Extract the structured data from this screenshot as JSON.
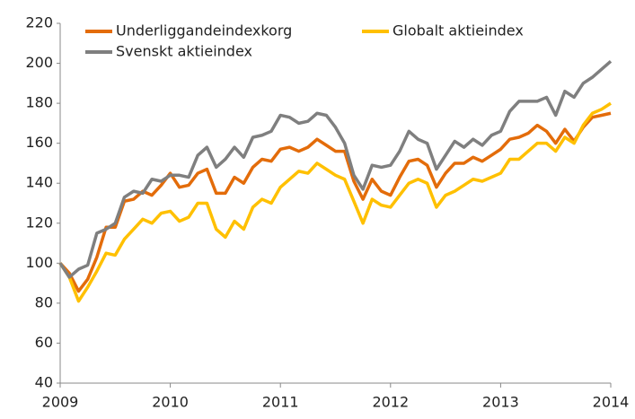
{
  "chart_data": {
    "type": "line",
    "x": [
      2009,
      2009.083,
      2009.167,
      2009.25,
      2009.333,
      2009.417,
      2009.5,
      2009.583,
      2009.667,
      2009.75,
      2009.833,
      2009.917,
      2010,
      2010.083,
      2010.167,
      2010.25,
      2010.333,
      2010.417,
      2010.5,
      2010.583,
      2010.667,
      2010.75,
      2010.833,
      2010.917,
      2011,
      2011.083,
      2011.167,
      2011.25,
      2011.333,
      2011.417,
      2011.5,
      2011.583,
      2011.667,
      2011.75,
      2011.833,
      2011.917,
      2012,
      2012.083,
      2012.167,
      2012.25,
      2012.333,
      2012.417,
      2012.5,
      2012.583,
      2012.667,
      2012.75,
      2012.833,
      2012.917,
      2013,
      2013.083,
      2013.167,
      2013.25,
      2013.333,
      2013.417,
      2013.5,
      2013.583,
      2013.667,
      2013.75,
      2013.833,
      2013.917,
      2014
    ],
    "series": [
      {
        "name": "Underliggandeindexkorg",
        "color": "#e36c0a",
        "values": [
          100,
          95,
          86,
          92,
          103,
          118,
          118,
          131,
          132,
          136,
          134,
          139,
          145,
          138,
          139,
          145,
          147,
          135,
          135,
          143,
          140,
          148,
          152,
          151,
          157,
          158,
          156,
          158,
          162,
          159,
          156,
          156,
          141,
          132,
          142,
          136,
          134,
          143,
          151,
          152,
          149,
          138,
          145,
          150,
          150,
          153,
          151,
          154,
          157,
          162,
          163,
          165,
          169,
          166,
          160,
          167,
          161,
          168,
          173,
          174,
          175
        ]
      },
      {
        "name": "Globalt aktieindex",
        "color": "#ffc000",
        "values": [
          100,
          93,
          81,
          88,
          96,
          105,
          104,
          112,
          117,
          122,
          120,
          125,
          126,
          121,
          123,
          130,
          130,
          117,
          113,
          121,
          117,
          128,
          132,
          130,
          138,
          142,
          146,
          145,
          150,
          147,
          144,
          142,
          131,
          120,
          132,
          129,
          128,
          134,
          140,
          142,
          140,
          128,
          134,
          136,
          139,
          142,
          141,
          143,
          145,
          152,
          152,
          156,
          160,
          160,
          156,
          163,
          160,
          169,
          175,
          177,
          180
        ]
      },
      {
        "name": "Svenskt aktieindex",
        "color": "#7f7f7f",
        "values": [
          100,
          93,
          97,
          99,
          115,
          117,
          120,
          133,
          136,
          135,
          142,
          141,
          144,
          144,
          143,
          154,
          158,
          148,
          152,
          158,
          153,
          163,
          164,
          166,
          174,
          173,
          170,
          171,
          175,
          174,
          168,
          160,
          144,
          137,
          149,
          148,
          149,
          156,
          166,
          162,
          160,
          147,
          154,
          161,
          158,
          162,
          159,
          164,
          166,
          176,
          181,
          181,
          181,
          183,
          174,
          186,
          183,
          190,
          193,
          197,
          201
        ]
      }
    ],
    "xlim": [
      2009,
      2014
    ],
    "xticks": [
      2009,
      2010,
      2011,
      2012,
      2013,
      2014
    ],
    "ylim": [
      40,
      220
    ],
    "yticks": [
      40,
      60,
      80,
      100,
      120,
      140,
      160,
      180,
      200,
      220
    ],
    "grid": false,
    "legend": "top"
  }
}
